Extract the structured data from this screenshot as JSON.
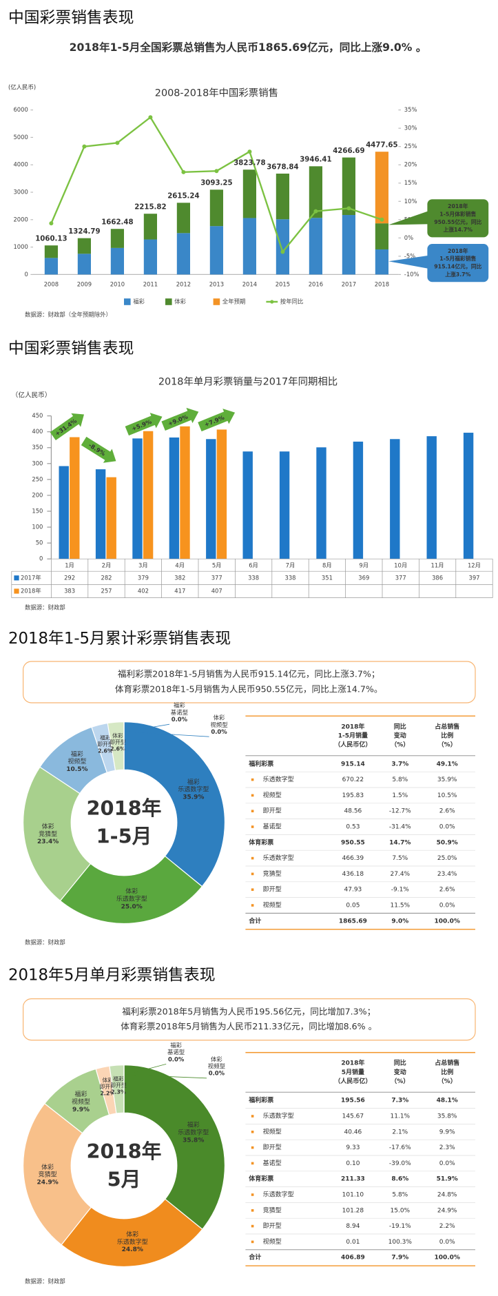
{
  "sections": [
    {
      "heading": "中国彩票销售表现",
      "summary": [
        "2018年1-5月全国彩票总销售为人民币1865.69亿元，同比上涨9.0% 。"
      ]
    },
    {
      "heading": "中国彩票销售表现"
    },
    {
      "heading": "2018年1-5月累计彩票销售表现",
      "summary": [
        "福利彩票2018年1-5月销售为人民币915.14亿元，同比上涨3.7%；",
        "体育彩票2018年1-5月销售为人民币950.55亿元，同比上涨14.7%。"
      ]
    },
    {
      "heading": "2018年5月单月彩票销售表现",
      "summary": [
        "福利彩票2018年5月销售为人民币195.56亿元，同比增加7.3%；",
        "体育彩票2018年5月销售为人民币211.33亿元，同比增加8.6% 。"
      ]
    }
  ],
  "chart_data": [
    {
      "type": "bar",
      "stacked": true,
      "title": "2008-2018年中国彩票销售",
      "y_label": "(亿人民币)",
      "categories": [
        "2008",
        "2009",
        "2010",
        "2011",
        "2012",
        "2013",
        "2014",
        "2015",
        "2016",
        "2017",
        "2018"
      ],
      "series": [
        {
          "name": "福彩",
          "color": "#3a87c8",
          "values": [
            604,
            756,
            968,
            1278,
            1510,
            1765,
            2059,
            2015,
            2065,
            2170,
            915.14
          ]
        },
        {
          "name": "体彩",
          "color": "#4f8a2e",
          "values": [
            456.13,
            568.79,
            694.48,
            937.82,
            1105.24,
            1328.25,
            1764.78,
            1663.84,
            1881.41,
            2096.69,
            950.55
          ]
        },
        {
          "name": "全年预期",
          "color": "#f39325",
          "values": [
            null,
            null,
            null,
            null,
            null,
            null,
            null,
            null,
            null,
            null,
            2611.96
          ]
        },
        {
          "name": "按年同比",
          "color": "#7cc242",
          "type": "line",
          "axis": "y2",
          "values": [
            4,
            25,
            26,
            33,
            18,
            18.3,
            23.6,
            -3.8,
            7.3,
            8.1,
            5
          ]
        }
      ],
      "totals": [
        1060.13,
        1324.79,
        1662.48,
        2215.82,
        2615.24,
        3093.25,
        3823.78,
        3678.84,
        3946.41,
        4266.69,
        4477.65
      ],
      "totals_color": "#f08c1e",
      "ylim": [
        0,
        6000
      ],
      "yticks": [
        0,
        1000,
        2000,
        3000,
        4000,
        5000,
        6000
      ],
      "y2lim": [
        -10,
        35
      ],
      "y2ticks": [
        {
          "value": -10,
          "label": "-10%"
        },
        {
          "value": -5,
          "label": "-5%"
        },
        {
          "value": 0,
          "label": "0%"
        },
        {
          "value": 5,
          "label": "5%"
        },
        {
          "value": 10,
          "label": "10%"
        },
        {
          "value": 15,
          "label": "15%"
        },
        {
          "value": 20,
          "label": "20%"
        },
        {
          "value": 25,
          "label": "25%"
        },
        {
          "value": 30,
          "label": "30%"
        },
        {
          "value": 35,
          "label": "35%"
        }
      ],
      "grid": false,
      "legend": "bottom",
      "annotations": [
        {
          "lines": [
            "2018年",
            "1-5月体彩销售",
            "950.55亿元，同比",
            "上涨14.7%"
          ],
          "color": "#4f8a2e"
        },
        {
          "lines": [
            "2018年",
            "1-5月福彩销售",
            "915.14亿元，同比",
            "上涨3.7%"
          ],
          "color": "#3a87c8"
        }
      ],
      "source": "数据源：财政部（全年预期除外）"
    },
    {
      "type": "bar",
      "title": "2018年单月彩票销量与2017年同期相比",
      "y_label": "（亿人民币）",
      "categories": [
        "1月",
        "2月",
        "3月",
        "4月",
        "5月",
        "6月",
        "7月",
        "8月",
        "9月",
        "10月",
        "11月",
        "12月"
      ],
      "series": [
        {
          "name": "2017年",
          "color": "#1f78c8",
          "values": [
            292,
            282,
            379,
            382,
            377,
            338,
            338,
            351,
            369,
            377,
            386,
            397
          ]
        },
        {
          "name": "2018年",
          "color": "#f7931e",
          "values": [
            383,
            257,
            402,
            417,
            407,
            null,
            null,
            null,
            null,
            null,
            null,
            null
          ]
        }
      ],
      "ylim": [
        0,
        450
      ],
      "yticks": [
        0,
        50,
        100,
        150,
        200,
        250,
        300,
        350,
        400,
        450
      ],
      "grid": false,
      "annotations": [
        "+31.4%",
        "-8.9%",
        "+5.9%",
        "+9.0%",
        "+7.9%"
      ],
      "annotation_color": "#5fae3a",
      "source": "数据源：财政部"
    },
    {
      "type": "donut",
      "center_label": [
        "2018年",
        "1-5月"
      ],
      "center_color": "#2e7fbf",
      "groups": [
        "福彩",
        "体彩",
        "体彩",
        "福彩",
        "福彩",
        "体彩",
        "福彩",
        "体彩"
      ],
      "labels": [
        "乐透数字型",
        "乐透数字型",
        "竞猜型",
        "视频型",
        "即开型",
        "即开型",
        "基诺型",
        "视频型"
      ],
      "values": [
        35.9,
        25.0,
        23.4,
        10.5,
        2.6,
        2.6,
        0.0,
        0.0
      ],
      "value_labels": [
        "35.9%",
        "25.0%",
        "23.4%",
        "10.5%",
        "2.6%",
        "2.6%",
        "0.0%",
        "0.0%"
      ],
      "colors": [
        "#2e7fbf",
        "#5aa83e",
        "#a8d08d",
        "#8ab9dd",
        "#bcd6ee",
        "#d6e8c4",
        "#dbe8f5",
        "#e8f2de"
      ],
      "source": "数据源：财政部"
    },
    {
      "type": "donut",
      "center_label": [
        "2018年",
        "5月"
      ],
      "center_color": "#4a8a2a",
      "groups": [
        "福彩",
        "体彩",
        "体彩",
        "福彩",
        "体彩",
        "福彩",
        "福彩",
        "体彩"
      ],
      "labels": [
        "乐透数字型",
        "乐透数字型",
        "竞猜型",
        "视频型",
        "即开型",
        "即开型",
        "基诺型",
        "视频型"
      ],
      "values": [
        35.8,
        24.8,
        24.9,
        9.9,
        2.2,
        2.3,
        0.0,
        0.0
      ],
      "value_labels": [
        "35.8%",
        "24.8%",
        "24.9%",
        "9.9%",
        "2.2%",
        "2.3%",
        "0.0%",
        "0.0%"
      ],
      "colors": [
        "#4a8a2a",
        "#f08c1e",
        "#f8c08a",
        "#a9d08e",
        "#fbd5b5",
        "#c6e0b4",
        "#e2efd9",
        "#fde7d3"
      ],
      "source": "数据源：财政部"
    }
  ],
  "tables": [
    {
      "columns": [
        [
          "2018年",
          "1-5月销量",
          "（人民币亿）"
        ],
        [
          "同比",
          "变动",
          "（%）"
        ],
        [
          "占总销售",
          "比例",
          "（%）"
        ]
      ],
      "rows": [
        {
          "kind": "group",
          "cells": [
            "福利彩票",
            "915.14",
            "3.7%",
            "49.1%"
          ]
        },
        {
          "kind": "item",
          "cells": [
            "乐透数字型",
            "670.22",
            "5.8%",
            "35.9%"
          ]
        },
        {
          "kind": "item",
          "cells": [
            "视频型",
            "195.83",
            "1.5%",
            "10.5%"
          ]
        },
        {
          "kind": "item",
          "cells": [
            "即开型",
            "48.56",
            "-12.7%",
            "2.6%"
          ]
        },
        {
          "kind": "item",
          "cells": [
            "基诺型",
            "0.53",
            "-31.4%",
            "0.0%"
          ]
        },
        {
          "kind": "group",
          "cells": [
            "体育彩票",
            "950.55",
            "14.7%",
            "50.9%"
          ]
        },
        {
          "kind": "item",
          "cells": [
            "乐透数字型",
            "466.39",
            "7.5%",
            "25.0%"
          ]
        },
        {
          "kind": "item",
          "cells": [
            "竞猜型",
            "436.18",
            "27.4%",
            "23.4%"
          ]
        },
        {
          "kind": "item",
          "cells": [
            "即开型",
            "47.93",
            "-9.1%",
            "2.6%"
          ]
        },
        {
          "kind": "item",
          "cells": [
            "视频型",
            "0.05",
            "11.5%",
            "0.0%"
          ]
        },
        {
          "kind": "total",
          "cells": [
            "合计",
            "1865.69",
            "9.0%",
            "100.0%"
          ]
        }
      ]
    },
    {
      "columns": [
        [
          "2018年",
          "5月销量",
          "（人民币亿）"
        ],
        [
          "同比",
          "变动",
          "（%）"
        ],
        [
          "占总销售",
          "比例",
          "（%）"
        ]
      ],
      "rows": [
        {
          "kind": "group",
          "cells": [
            "福利彩票",
            "195.56",
            "7.3%",
            "48.1%"
          ]
        },
        {
          "kind": "item",
          "cells": [
            "乐透数字型",
            "145.67",
            "11.1%",
            "35.8%"
          ]
        },
        {
          "kind": "item",
          "cells": [
            "视频型",
            "40.46",
            "2.1%",
            "9.9%"
          ]
        },
        {
          "kind": "item",
          "cells": [
            "即开型",
            "9.33",
            "-17.6%",
            "2.3%"
          ]
        },
        {
          "kind": "item",
          "cells": [
            "基诺型",
            "0.10",
            "-39.0%",
            "0.0%"
          ]
        },
        {
          "kind": "group",
          "cells": [
            "体育彩票",
            "211.33",
            "8.6%",
            "51.9%"
          ]
        },
        {
          "kind": "item",
          "cells": [
            "乐透数字型",
            "101.10",
            "5.8%",
            "24.8%"
          ]
        },
        {
          "kind": "item",
          "cells": [
            "竞猜型",
            "101.28",
            "15.0%",
            "24.9%"
          ]
        },
        {
          "kind": "item",
          "cells": [
            "即开型",
            "8.94",
            "-19.1%",
            "2.2%"
          ]
        },
        {
          "kind": "item",
          "cells": [
            "视频型",
            "0.01",
            "100.3%",
            "0.0%"
          ]
        },
        {
          "kind": "total",
          "cells": [
            "合计",
            "406.89",
            "7.9%",
            "100.0%"
          ]
        }
      ]
    }
  ]
}
